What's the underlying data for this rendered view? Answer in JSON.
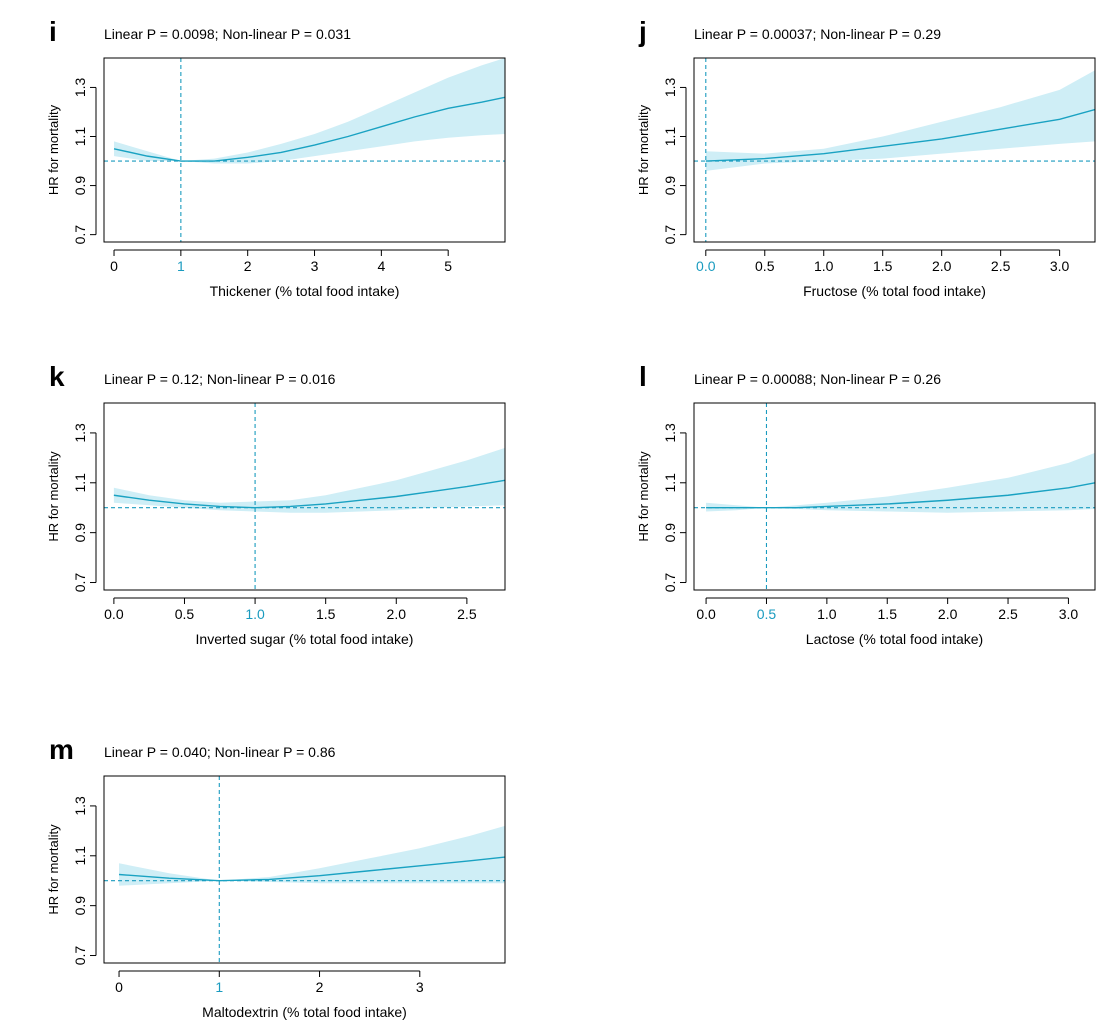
{
  "figure": {
    "ylabel": "HR for mortality",
    "band_color": "#cfeef6",
    "line_color": "#1aa2c2",
    "ref_color": "#1a9bbf",
    "axis_color": "#000000"
  },
  "chart_data": [
    {
      "panel": "i",
      "type": "line",
      "subtitle": "Linear P = 0.0098; Non-linear P = 0.031",
      "xlabel": "Thickener (% total food intake)",
      "ylabel": "HR for mortality",
      "xlim": [
        -0.15,
        5.85
      ],
      "ylim": [
        0.67,
        1.42
      ],
      "xticks": [
        {
          "v": 0,
          "l": "0"
        },
        {
          "v": 1,
          "l": "1"
        },
        {
          "v": 2,
          "l": "2"
        },
        {
          "v": 3,
          "l": "3"
        },
        {
          "v": 4,
          "l": "4"
        },
        {
          "v": 5,
          "l": "5"
        }
      ],
      "yticks": [
        {
          "v": 0.7,
          "l": "0.7"
        },
        {
          "v": 0.9,
          "l": "0.9"
        },
        {
          "v": 1.1,
          "l": "1.1"
        },
        {
          "v": 1.3,
          "l": "1.3"
        }
      ],
      "reference_x": 1,
      "reference_y": 1.0,
      "x": [
        0,
        0.5,
        1,
        1.5,
        2,
        2.5,
        3,
        3.5,
        4,
        4.5,
        5,
        5.5,
        5.85
      ],
      "hr": [
        1.05,
        1.02,
        1.0,
        1.0,
        1.015,
        1.035,
        1.065,
        1.1,
        1.14,
        1.18,
        1.215,
        1.24,
        1.26
      ],
      "lower": [
        1.02,
        1.0,
        1.0,
        0.99,
        0.99,
        1.0,
        1.02,
        1.04,
        1.06,
        1.08,
        1.095,
        1.105,
        1.11
      ],
      "upper": [
        1.08,
        1.04,
        1.0,
        1.01,
        1.035,
        1.07,
        1.11,
        1.16,
        1.22,
        1.28,
        1.34,
        1.39,
        1.42
      ]
    },
    {
      "panel": "j",
      "type": "line",
      "subtitle": "Linear P = 0.00037; Non-linear P = 0.29",
      "xlabel": "Fructose (% total food intake)",
      "ylabel": "HR for mortality",
      "xlim": [
        -0.1,
        3.3
      ],
      "ylim": [
        0.67,
        1.42
      ],
      "xticks": [
        {
          "v": 0,
          "l": "0.0"
        },
        {
          "v": 0.5,
          "l": "0.5"
        },
        {
          "v": 1.0,
          "l": "1.0"
        },
        {
          "v": 1.5,
          "l": "1.5"
        },
        {
          "v": 2.0,
          "l": "2.0"
        },
        {
          "v": 2.5,
          "l": "2.5"
        },
        {
          "v": 3.0,
          "l": "3.0"
        }
      ],
      "yticks": [
        {
          "v": 0.7,
          "l": "0.7"
        },
        {
          "v": 0.9,
          "l": "0.9"
        },
        {
          "v": 1.1,
          "l": "1.1"
        },
        {
          "v": 1.3,
          "l": "1.3"
        }
      ],
      "reference_x": 0,
      "reference_y": 1.0,
      "x": [
        0,
        0.5,
        1.0,
        1.5,
        2.0,
        2.5,
        3.0,
        3.3
      ],
      "hr": [
        1.0,
        1.01,
        1.03,
        1.06,
        1.09,
        1.13,
        1.17,
        1.21
      ],
      "lower": [
        0.96,
        0.99,
        1.0,
        1.01,
        1.03,
        1.05,
        1.07,
        1.08
      ],
      "upper": [
        1.04,
        1.03,
        1.05,
        1.1,
        1.16,
        1.22,
        1.29,
        1.37
      ]
    },
    {
      "panel": "k",
      "type": "line",
      "subtitle": "Linear P = 0.12; Non-linear P = 0.016",
      "xlabel": "Inverted sugar (% total food intake)",
      "ylabel": "HR for mortality",
      "xlim": [
        -0.07,
        2.77
      ],
      "ylim": [
        0.67,
        1.42
      ],
      "xticks": [
        {
          "v": 0,
          "l": "0.0"
        },
        {
          "v": 0.5,
          "l": "0.5"
        },
        {
          "v": 1.0,
          "l": "1.0"
        },
        {
          "v": 1.5,
          "l": "1.5"
        },
        {
          "v": 2.0,
          "l": "2.0"
        },
        {
          "v": 2.5,
          "l": "2.5"
        }
      ],
      "yticks": [
        {
          "v": 0.7,
          "l": "0.7"
        },
        {
          "v": 0.9,
          "l": "0.9"
        },
        {
          "v": 1.1,
          "l": "1.1"
        },
        {
          "v": 1.3,
          "l": "1.3"
        }
      ],
      "reference_x": 1.0,
      "reference_y": 1.0,
      "x": [
        0,
        0.25,
        0.5,
        0.75,
        1.0,
        1.25,
        1.5,
        1.75,
        2.0,
        2.25,
        2.5,
        2.77
      ],
      "hr": [
        1.05,
        1.03,
        1.015,
        1.005,
        1.0,
        1.005,
        1.015,
        1.03,
        1.045,
        1.065,
        1.085,
        1.11
      ],
      "lower": [
        1.02,
        1.01,
        1.0,
        0.99,
        0.985,
        0.98,
        0.98,
        0.985,
        0.99,
        1.0,
        1.005,
        1.01
      ],
      "upper": [
        1.08,
        1.05,
        1.03,
        1.02,
        1.025,
        1.03,
        1.05,
        1.08,
        1.11,
        1.15,
        1.19,
        1.24
      ]
    },
    {
      "panel": "l",
      "type": "line",
      "subtitle": "Linear P = 0.00088; Non-linear P = 0.26",
      "xlabel": "Lactose (% total food intake)",
      "ylabel": "HR for mortality",
      "xlim": [
        -0.1,
        3.22
      ],
      "ylim": [
        0.67,
        1.42
      ],
      "xticks": [
        {
          "v": 0,
          "l": "0.0"
        },
        {
          "v": 0.5,
          "l": "0.5"
        },
        {
          "v": 1.0,
          "l": "1.0"
        },
        {
          "v": 1.5,
          "l": "1.5"
        },
        {
          "v": 2.0,
          "l": "2.0"
        },
        {
          "v": 2.5,
          "l": "2.5"
        },
        {
          "v": 3.0,
          "l": "3.0"
        }
      ],
      "yticks": [
        {
          "v": 0.7,
          "l": "0.7"
        },
        {
          "v": 0.9,
          "l": "0.9"
        },
        {
          "v": 1.1,
          "l": "1.1"
        },
        {
          "v": 1.3,
          "l": "1.3"
        }
      ],
      "reference_x": 0.5,
      "reference_y": 1.0,
      "x": [
        0,
        0.25,
        0.5,
        0.75,
        1.0,
        1.5,
        2.0,
        2.5,
        3.0,
        3.22
      ],
      "hr": [
        1.0,
        1.0,
        1.0,
        1.0,
        1.005,
        1.015,
        1.03,
        1.05,
        1.08,
        1.1
      ],
      "lower": [
        0.985,
        0.99,
        1.0,
        0.995,
        0.99,
        0.985,
        0.98,
        0.985,
        0.99,
        0.995
      ],
      "upper": [
        1.02,
        1.01,
        1.0,
        1.01,
        1.02,
        1.045,
        1.08,
        1.12,
        1.18,
        1.22
      ]
    },
    {
      "panel": "m",
      "type": "line",
      "subtitle": "Linear P = 0.040; Non-linear P = 0.86",
      "xlabel": "Maltodextrin (% total food intake)",
      "ylabel": "HR for mortality",
      "xlim": [
        -0.15,
        3.85
      ],
      "ylim": [
        0.67,
        1.42
      ],
      "xticks": [
        {
          "v": 0,
          "l": "0"
        },
        {
          "v": 1,
          "l": "1"
        },
        {
          "v": 2,
          "l": "2"
        },
        {
          "v": 3,
          "l": "3"
        }
      ],
      "yticks": [
        {
          "v": 0.7,
          "l": "0.7"
        },
        {
          "v": 0.9,
          "l": "0.9"
        },
        {
          "v": 1.1,
          "l": "1.1"
        },
        {
          "v": 1.3,
          "l": "1.3"
        }
      ],
      "reference_x": 1,
      "reference_y": 1.0,
      "x": [
        0,
        0.5,
        1,
        1.5,
        2,
        2.5,
        3,
        3.5,
        3.85
      ],
      "hr": [
        1.025,
        1.01,
        1.0,
        1.005,
        1.02,
        1.04,
        1.06,
        1.08,
        1.095
      ],
      "lower": [
        0.98,
        0.99,
        1.0,
        0.995,
        0.99,
        0.99,
        0.99,
        0.99,
        0.99
      ],
      "upper": [
        1.07,
        1.03,
        1.0,
        1.015,
        1.05,
        1.09,
        1.13,
        1.18,
        1.22
      ]
    }
  ]
}
